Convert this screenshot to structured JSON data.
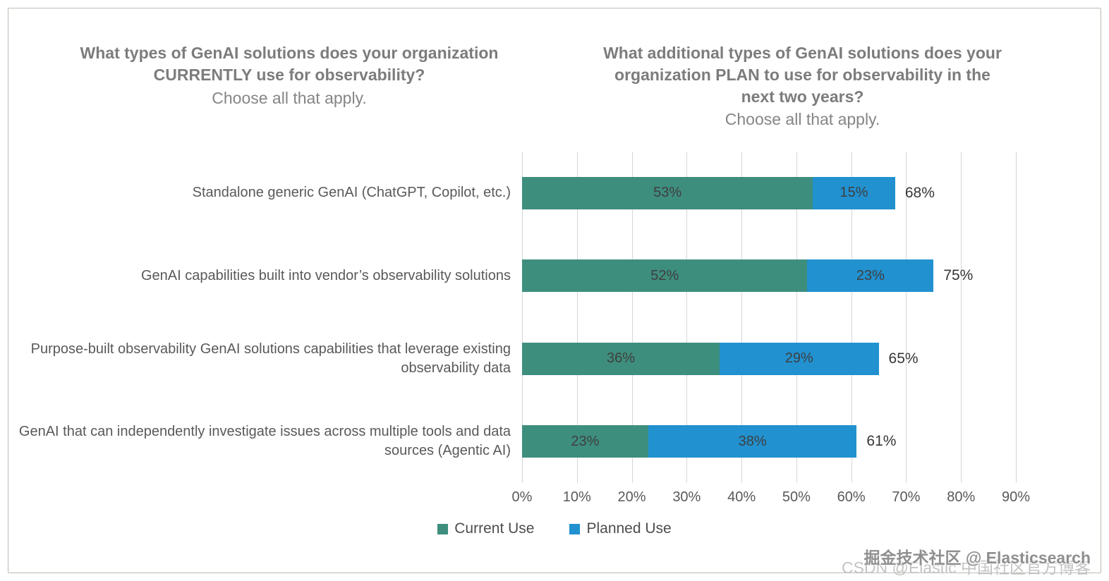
{
  "titles": {
    "left": {
      "main": "What types of GenAI solutions does your organization CURRENTLY use for observability?",
      "subtitle": "Choose all that apply."
    },
    "right": {
      "main": "What additional types of GenAI solutions does your organization PLAN to use for observability in the next two years?",
      "subtitle": "Choose all that apply."
    }
  },
  "chart_data": {
    "type": "bar",
    "orientation": "horizontal",
    "stacked": true,
    "categories": [
      "Standalone generic GenAI (ChatGPT, Copilot, etc.)",
      "GenAI capabilities built into vendor’s observability solutions",
      "Purpose-built observability GenAI solutions capabilities that leverage existing observability data",
      "GenAI that can independently investigate issues across multiple tools and data sources (Agentic AI)"
    ],
    "series": [
      {
        "name": "Current Use",
        "color": "#3E8E7E",
        "values": [
          53,
          52,
          36,
          23
        ]
      },
      {
        "name": "Planned Use",
        "color": "#2191D0",
        "values": [
          15,
          23,
          29,
          38
        ]
      }
    ],
    "totals": [
      "68%",
      "75%",
      "65%",
      "61%"
    ],
    "x_ticks": [
      "0%",
      "10%",
      "20%",
      "30%",
      "40%",
      "50%",
      "60%",
      "70%",
      "80%",
      "90%"
    ],
    "xlim": [
      0,
      90
    ],
    "grid": true,
    "legend_position": "bottom",
    "value_suffix": "%"
  },
  "watermarks": {
    "top": "掘金技术社区 @ Elasticsearch",
    "bottom": "CSDN @Elastic 中国社区官方博客"
  },
  "colors": {
    "current_use": "#3E8E7E",
    "planned_use": "#2191D0",
    "gridline": "#d6d6d6",
    "title_text": "#7c7c7c",
    "axis_text": "#595959"
  }
}
